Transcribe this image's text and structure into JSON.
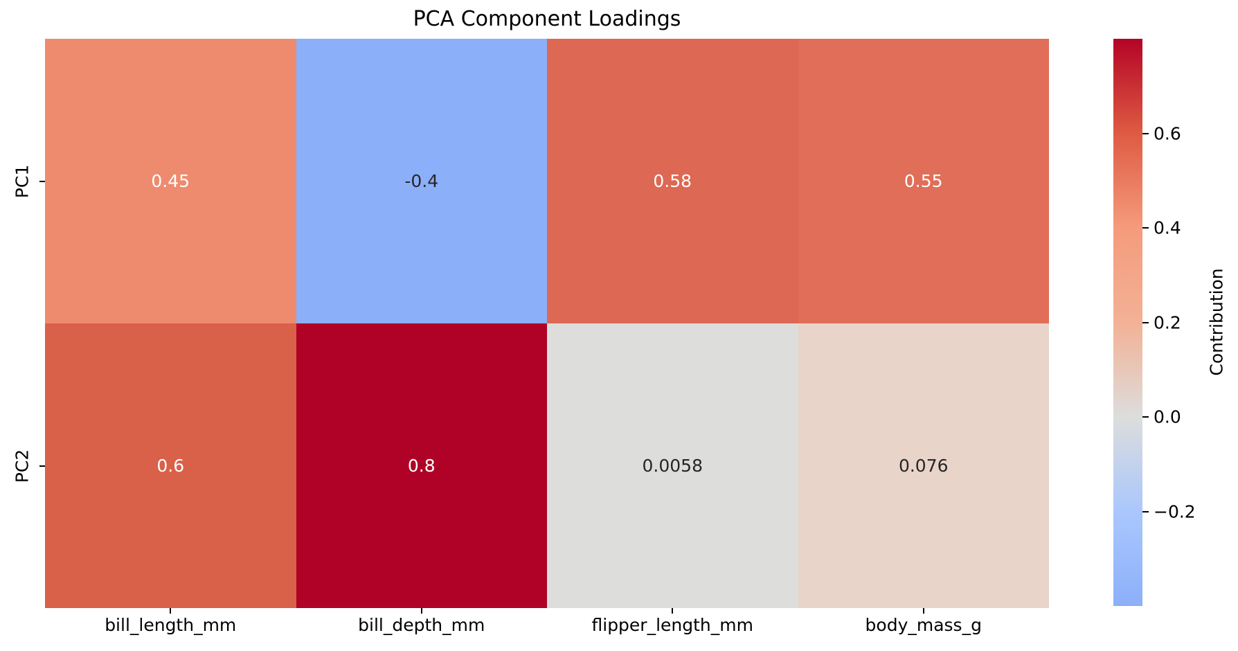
{
  "chart_data": {
    "type": "heatmap",
    "title": "PCA Component Loadings",
    "colormap": "coolwarm",
    "rows": [
      "PC1",
      "PC2"
    ],
    "columns": [
      "bill_length_mm",
      "bill_depth_mm",
      "flipper_length_mm",
      "body_mass_g"
    ],
    "values": [
      [
        0.45,
        -0.4,
        0.58,
        0.55
      ],
      [
        0.6,
        0.8,
        0.0058,
        0.076
      ]
    ],
    "cell_labels": [
      [
        "0.45",
        "-0.4",
        "0.58",
        "0.55"
      ],
      [
        "0.6",
        "0.8",
        "0.0058",
        "0.076"
      ]
    ],
    "cell_colors": [
      [
        "#EE8B6F",
        "#8CAFF9",
        "#DD6853",
        "#E06E58"
      ],
      [
        "#D96049",
        "#B00227",
        "#DDDDDC",
        "#E8D4C9"
      ]
    ],
    "cell_text_colors": [
      [
        "#ffffff",
        "#262626",
        "#ffffff",
        "#ffffff"
      ],
      [
        "#ffffff",
        "#ffffff",
        "#262626",
        "#262626"
      ]
    ],
    "colorbar": {
      "label": "Contribution",
      "min": -0.4,
      "max": 0.8,
      "ticks": [
        "0.6",
        "0.4",
        "0.2",
        "0.0",
        "−0.2"
      ],
      "tick_values": [
        0.6,
        0.4,
        0.2,
        0.0,
        -0.2
      ],
      "gradient_bottom_to_top": [
        {
          "pos": "0%",
          "color": "#8CAFF9"
        },
        {
          "pos": "16.67%",
          "color": "#AAC7FD"
        },
        {
          "pos": "33.33%",
          "color": "#DDDDDC"
        },
        {
          "pos": "50%",
          "color": "#F3B195"
        },
        {
          "pos": "66.67%",
          "color": "#F59B7C"
        },
        {
          "pos": "83.33%",
          "color": "#DE5B42"
        },
        {
          "pos": "100%",
          "color": "#B40426"
        }
      ]
    },
    "layout": {
      "grid": false,
      "legend_position": "right-colorbar",
      "x_tick_rotation": 0
    }
  }
}
